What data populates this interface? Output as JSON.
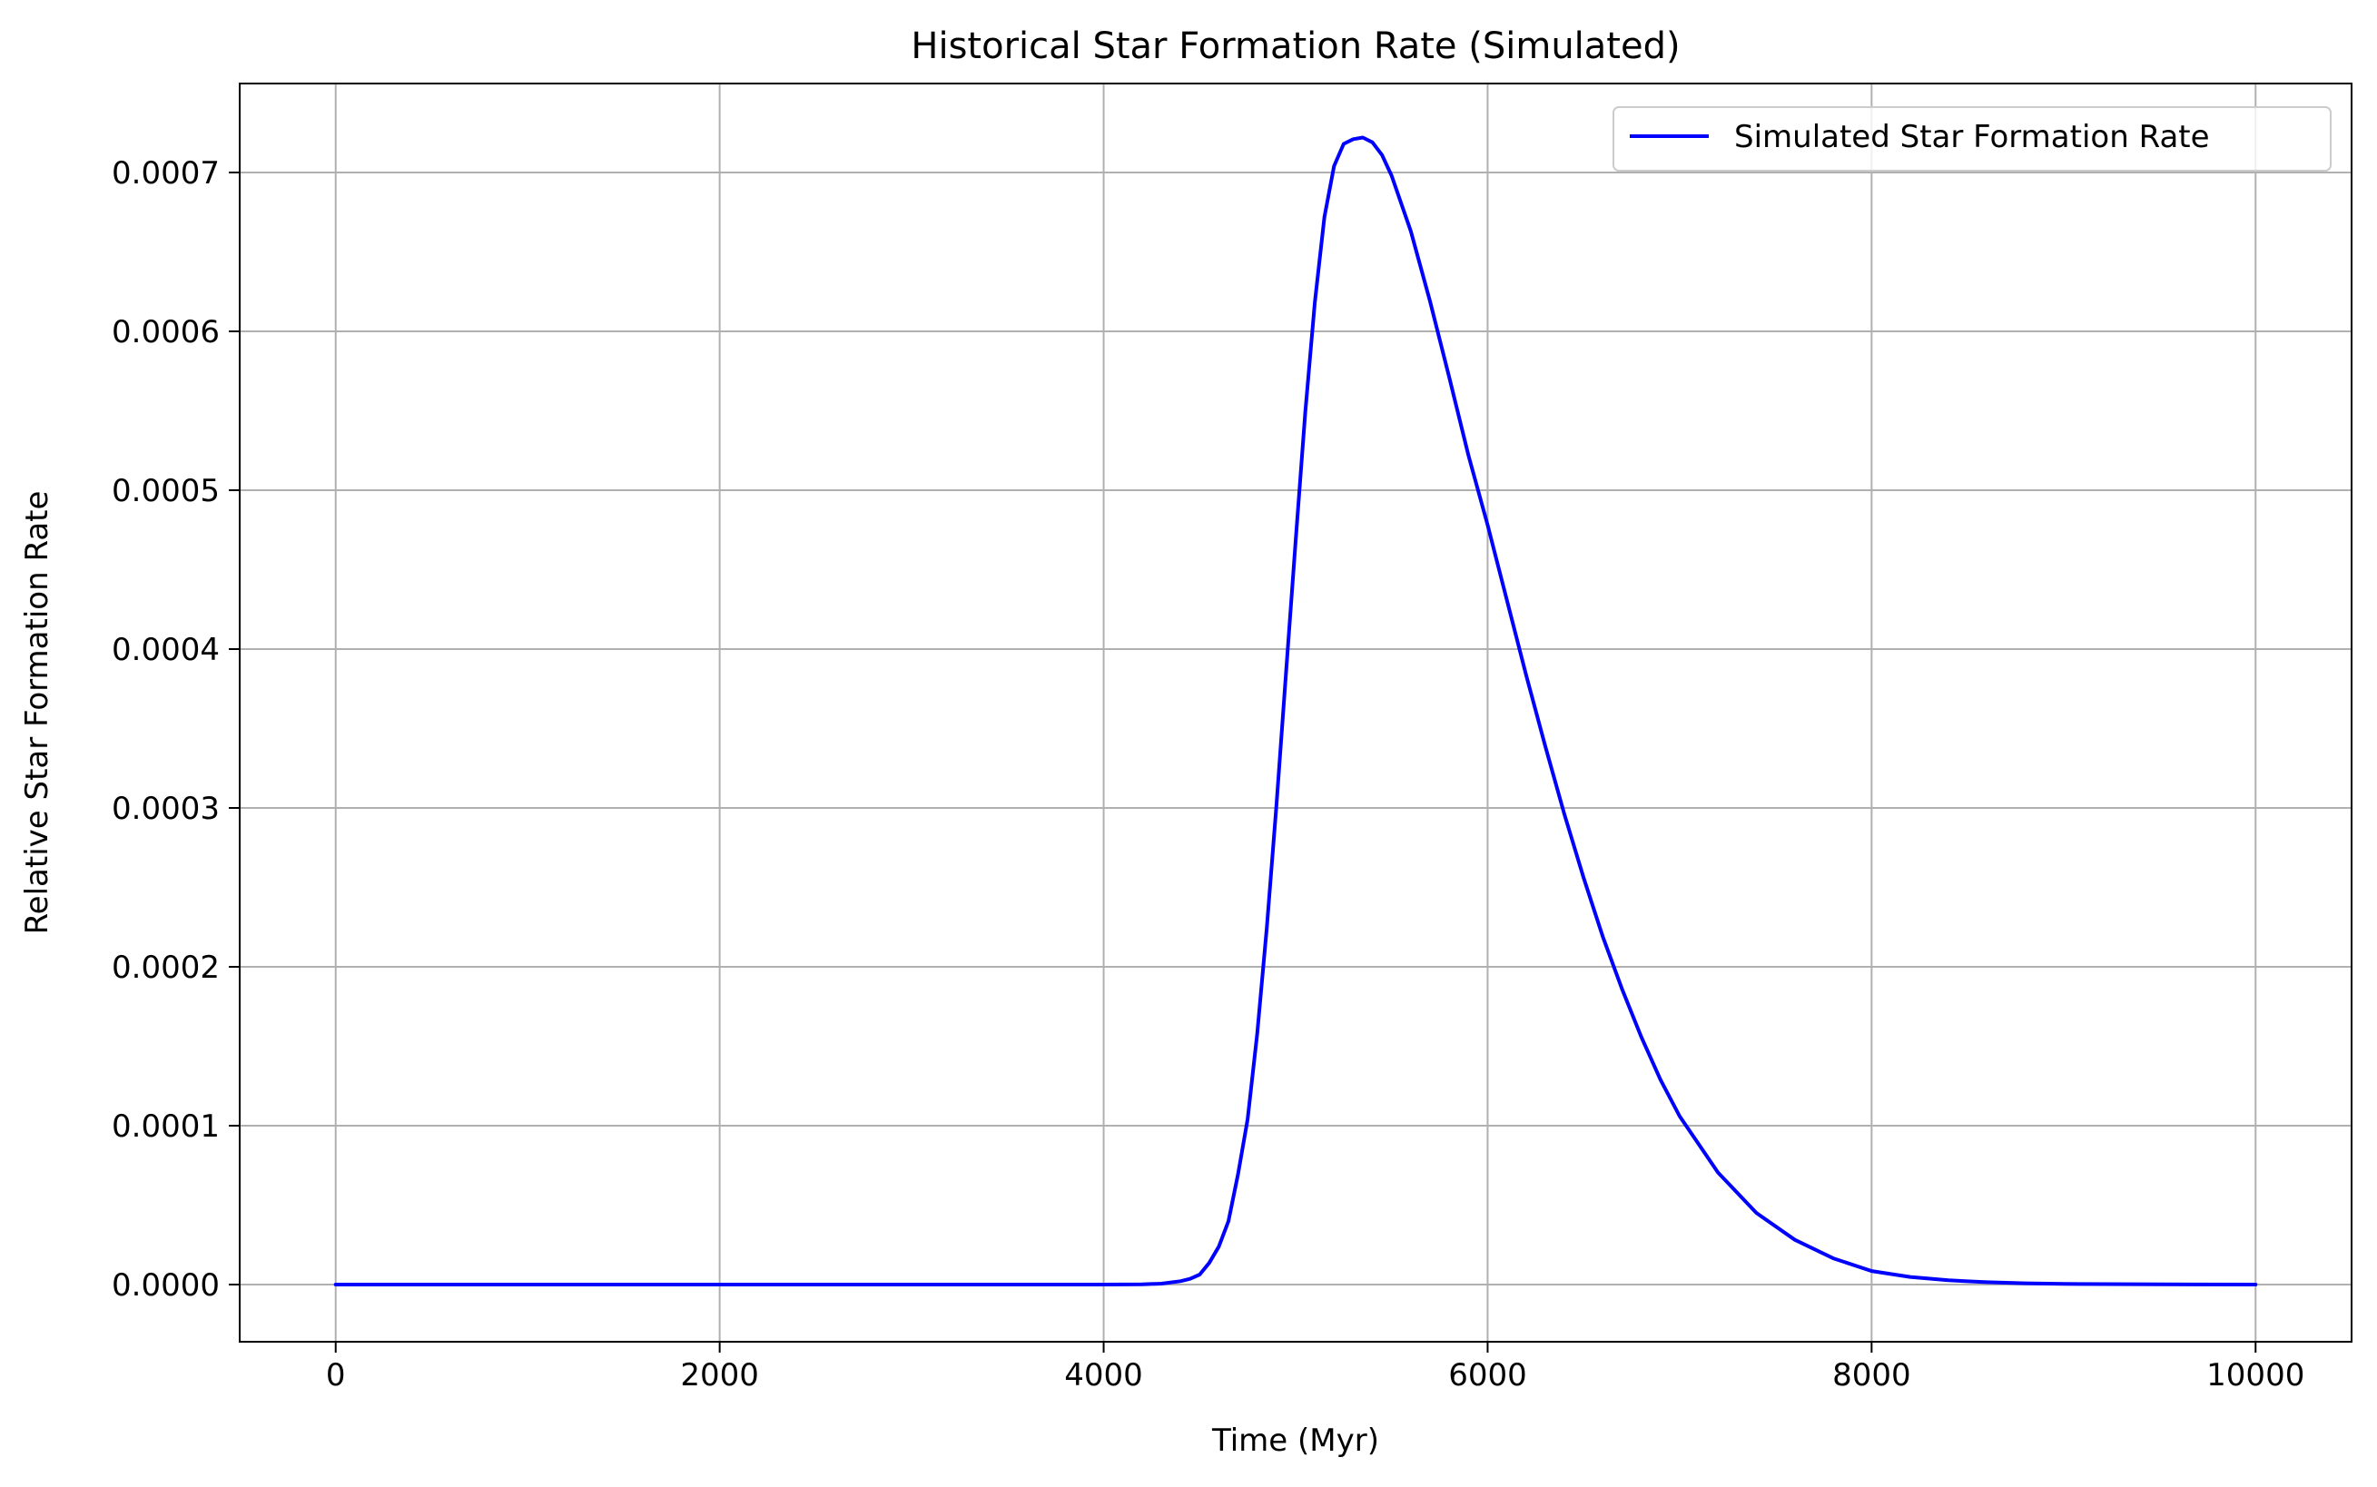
{
  "chart_data": {
    "type": "line",
    "title": "Historical Star Formation Rate (Simulated)",
    "xlabel": "Time (Myr)",
    "ylabel": "Relative Star Formation Rate",
    "xlim": [
      -500,
      10500
    ],
    "ylim": [
      -3.6e-05,
      0.000756
    ],
    "xticks": [
      0,
      2000,
      4000,
      6000,
      8000,
      10000
    ],
    "xtick_labels": [
      "0",
      "2000",
      "4000",
      "6000",
      "8000",
      "10000"
    ],
    "yticks": [
      0,
      0.0001,
      0.0002,
      0.0003,
      0.0004,
      0.0005,
      0.0006,
      0.0007
    ],
    "ytick_labels": [
      "0.0000",
      "0.0001",
      "0.0002",
      "0.0003",
      "0.0004",
      "0.0005",
      "0.0006",
      "0.0007"
    ],
    "grid": true,
    "legend_position": "top-right",
    "series": [
      {
        "name": "Simulated Star Formation Rate",
        "color": "#0000ff",
        "x": [
          0,
          1000,
          2000,
          3000,
          4000,
          4200,
          4300,
          4400,
          4450,
          4500,
          4550,
          4600,
          4650,
          4700,
          4750,
          4800,
          4850,
          4900,
          4950,
          5000,
          5050,
          5100,
          5150,
          5200,
          5250,
          5300,
          5350,
          5400,
          5450,
          5500,
          5600,
          5700,
          5800,
          5900,
          6000,
          6100,
          6200,
          6300,
          6400,
          6500,
          6600,
          6700,
          6800,
          6900,
          7000,
          7200,
          7400,
          7600,
          7800,
          8000,
          8200,
          8400,
          8600,
          8800,
          9000,
          9500,
          10000
        ],
        "y": [
          0,
          0,
          0,
          0,
          0,
          1e-07,
          6e-07,
          2.1e-06,
          3.6e-06,
          6.3e-06,
          1.36e-05,
          2.39e-05,
          3.99e-05,
          6.96e-05,
          0.000104,
          0.000158,
          0.000225,
          0.000302,
          0.000385,
          0.000468,
          0.000549,
          0.000618,
          0.000672,
          0.000704,
          0.000718,
          0.000721,
          0.000722,
          0.000719,
          0.000711,
          0.000698,
          0.000663,
          0.000619,
          0.000571,
          0.000522,
          0.000478,
          0.000431,
          0.000384,
          0.000339,
          0.000296,
          0.000256,
          0.000219,
          0.000186,
          0.000156,
          0.000129,
          0.000106,
          7.05e-05,
          4.51e-05,
          2.82e-05,
          1.65e-05,
          8.5e-06,
          4.8e-06,
          2.7e-06,
          1.5e-06,
          8e-07,
          4e-07,
          1e-07,
          0
        ]
      }
    ]
  }
}
